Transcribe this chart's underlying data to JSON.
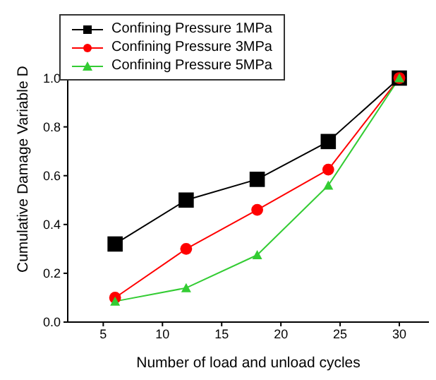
{
  "chart_data": {
    "type": "line",
    "xlabel": "Number of load and unload cycles",
    "ylabel": "Cumulative Damage Variable D",
    "x": [
      6,
      12,
      18,
      24,
      30
    ],
    "series": [
      {
        "name": "Confining Pressure 1MPa",
        "color": "#000000",
        "marker": "square",
        "values": [
          0.32,
          0.5,
          0.585,
          0.74,
          1.0
        ]
      },
      {
        "name": "Confining Pressure 3MPa",
        "color": "#ff0000",
        "marker": "circle",
        "values": [
          0.1,
          0.3,
          0.46,
          0.625,
          1.0
        ]
      },
      {
        "name": "Confining Pressure 5MPa",
        "color": "#33cc33",
        "marker": "triangle",
        "values": [
          0.085,
          0.14,
          0.275,
          0.56,
          1.0
        ]
      }
    ],
    "xlim": [
      2,
      32.5
    ],
    "xticks": [
      5,
      10,
      15,
      20,
      25,
      30
    ],
    "ylim": [
      0,
      1.1
    ],
    "yticks": [
      {
        "value": 0,
        "label": "0.0"
      },
      {
        "value": 0.2,
        "label": "0.2"
      },
      {
        "value": 0.4,
        "label": "0.4"
      },
      {
        "value": 0.6,
        "label": "0.6"
      },
      {
        "value": 0.8,
        "label": "0.8"
      },
      {
        "value": 1.0,
        "label": "1.0"
      }
    ],
    "legend": "top left",
    "grid": false
  }
}
